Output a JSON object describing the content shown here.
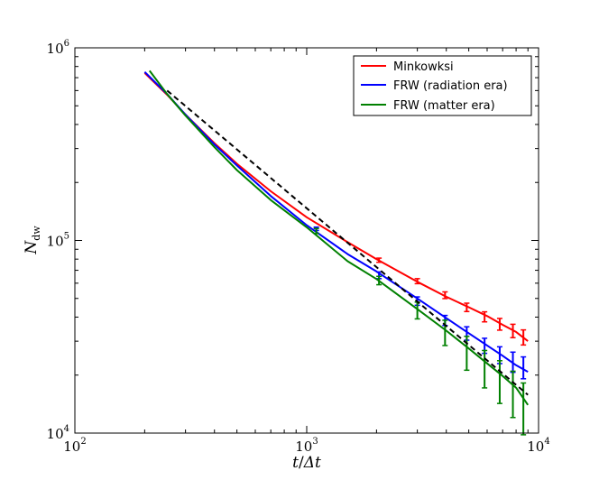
{
  "chart_data": {
    "type": "line",
    "x_scale": "log",
    "y_scale": "log",
    "xlim": [
      100,
      10000
    ],
    "ylim": [
      10000,
      1000000
    ],
    "x_ticks": [
      {
        "value": 100,
        "base": "10",
        "exp": "2"
      },
      {
        "value": 1000,
        "base": "10",
        "exp": "3"
      },
      {
        "value": 10000,
        "base": "10",
        "exp": "4"
      }
    ],
    "y_ticks": [
      {
        "value": 10000,
        "base": "10",
        "exp": "4"
      },
      {
        "value": 100000,
        "base": "10",
        "exp": "5"
      },
      {
        "value": 1000000,
        "base": "10",
        "exp": "6"
      }
    ],
    "xlabel": "t/Δt",
    "ylabel": "N_dw",
    "xlabel_parts": {
      "t": "t",
      "slash": "/",
      "delta": "Δt"
    },
    "ylabel_parts": {
      "N": "N",
      "sub": "dw"
    },
    "legend_position": "top-right",
    "series": [
      {
        "name": "Minkowksi",
        "color": "#ff0000",
        "x": [
          200,
          250,
          300,
          400,
          500,
          700,
          1000,
          1500,
          2000,
          3000,
          4000,
          5000,
          6000,
          7000,
          8000,
          9000
        ],
        "y": [
          740000,
          570000,
          450000,
          320000,
          250000,
          180000,
          132000,
          98000,
          80000,
          61000,
          51000,
          45000,
          40500,
          36500,
          33500,
          30000
        ],
        "err_x": [
          2050,
          3000,
          3950,
          4900,
          5850,
          6800,
          7750,
          8600
        ],
        "err_y": [
          79000,
          61500,
          52000,
          45000,
          40200,
          36800,
          34000,
          31500
        ],
        "err_frac": [
          0.025,
          0.03,
          0.04,
          0.05,
          0.06,
          0.07,
          0.08,
          0.09
        ]
      },
      {
        "name": "FRW (radiation era)",
        "color": "#0000ff",
        "x": [
          200,
          250,
          300,
          400,
          500,
          700,
          1000,
          1500,
          2000,
          3000,
          4000,
          5000,
          6000,
          7000,
          8000,
          9000
        ],
        "y": [
          750000,
          575000,
          450000,
          315000,
          245000,
          170000,
          120000,
          85000,
          69000,
          50000,
          39500,
          33000,
          28500,
          25200,
          22500,
          20800
        ],
        "err_x": [
          1100,
          2050,
          3000,
          3950,
          4900,
          5850,
          6800,
          7750,
          8600
        ],
        "err_y": [
          115000,
          66000,
          48500,
          38500,
          33000,
          28500,
          25500,
          23500,
          22000
        ],
        "err_frac": [
          0.02,
          0.04,
          0.05,
          0.06,
          0.08,
          0.09,
          0.1,
          0.12,
          0.13
        ]
      },
      {
        "name": "FRW (matter era)",
        "color": "#008000",
        "x": [
          210,
          250,
          300,
          400,
          500,
          700,
          1000,
          1500,
          2000,
          3000,
          4000,
          5000,
          6000,
          7000,
          8000,
          9000
        ],
        "y": [
          760000,
          575000,
          445000,
          305000,
          232000,
          162000,
          117000,
          78000,
          63000,
          44000,
          34000,
          27500,
          23000,
          19800,
          17200,
          14000
        ],
        "err_x": [
          1100,
          2050,
          3000,
          3950,
          4900,
          5850,
          6800,
          7750,
          8600
        ],
        "err_y": [
          112000,
          62000,
          43500,
          33500,
          26500,
          22000,
          19000,
          16500,
          14000
        ],
        "err_frac": [
          0.03,
          0.05,
          0.1,
          0.15,
          0.2,
          0.22,
          0.25,
          0.27,
          0.3
        ]
      },
      {
        "color": "#000000",
        "dashed": true,
        "x": [
          250,
          9000
        ],
        "y": [
          600000,
          15800
        ]
      }
    ],
    "legend": [
      {
        "label": "Minkowksi",
        "color": "#ff0000"
      },
      {
        "label": "FRW (radiation era)",
        "color": "#0000ff"
      },
      {
        "label": "FRW (matter era)",
        "color": "#008000"
      }
    ]
  }
}
